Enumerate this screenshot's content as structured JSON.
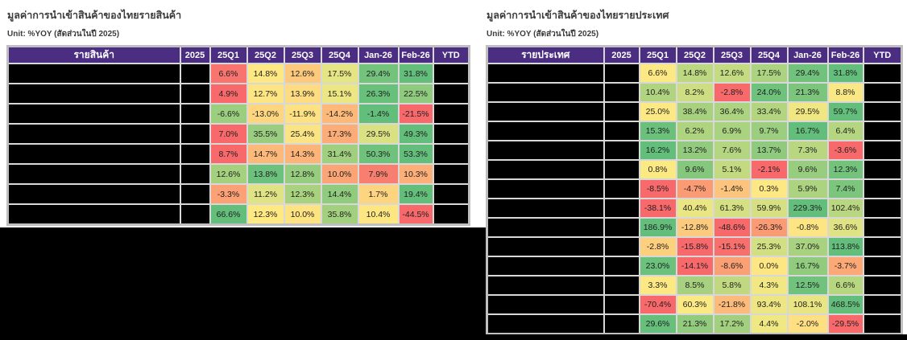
{
  "style": {
    "header_bg": "#4b2d82",
    "header_text": "#ffffff",
    "grid_line": "#d8d8d8",
    "outer_border": "#bfbfbf",
    "title_text": "#3c3c3c",
    "redaction": "#000000",
    "scale_min_red": "#f8696b",
    "scale_mid_yellow": "#ffeb84",
    "scale_max_green": "#63be7b"
  },
  "left_table": {
    "title": "มูลค่าการนำเข้าสินค้าของไทยรายสินค้า",
    "unit": "Unit: %YOY (สัดส่วนในปี 2025)",
    "columns": [
      "รายสินค้า",
      "2025",
      "25Q1",
      "25Q2",
      "25Q3",
      "25Q4",
      "Jan-26",
      "Feb-26",
      "YTD"
    ],
    "redacted_columns": [
      "รายสินค้า",
      "2025",
      "YTD"
    ],
    "rows": [
      {
        "values": [
          "6.6%",
          "14.8%",
          "12.6%",
          "17.5%",
          "29.4%",
          "31.8%"
        ],
        "colors": [
          "#f8746e",
          "#fee883",
          "#fcc97d",
          "#e6e583",
          "#74c37d",
          "#63be7b"
        ]
      },
      {
        "values": [
          "4.9%",
          "12.7%",
          "13.9%",
          "15.1%",
          "26.3%",
          "22.5%"
        ],
        "colors": [
          "#f8696b",
          "#fee583",
          "#fedc81",
          "#ede783",
          "#68c07b",
          "#8fca7e"
        ]
      },
      {
        "values": [
          "-6.6%",
          "-13.0%",
          "-11.9%",
          "-14.2%",
          "-1.4%",
          "-21.5%"
        ],
        "colors": [
          "#9bce7f",
          "#fdd67f",
          "#fee182",
          "#fcb97a",
          "#63be7b",
          "#f8696b"
        ]
      },
      {
        "values": [
          "7.0%",
          "35.5%",
          "25.4%",
          "17.3%",
          "29.5%",
          "49.3%"
        ],
        "colors": [
          "#f8696b",
          "#9acd7f",
          "#fbe483",
          "#fbac77",
          "#d9e182",
          "#63be7b"
        ]
      },
      {
        "values": [
          "8.7%",
          "14.7%",
          "14.3%",
          "31.4%",
          "50.3%",
          "53.3%"
        ],
        "colors": [
          "#f8696b",
          "#fcb97a",
          "#fcb479",
          "#a0cf7f",
          "#6ec27c",
          "#63be7b"
        ]
      },
      {
        "values": [
          "12.6%",
          "13.8%",
          "12.8%",
          "10.0%",
          "7.9%",
          "10.3%"
        ],
        "colors": [
          "#a5d17f",
          "#6cc17c",
          "#97cd7e",
          "#fba476",
          "#f87e70",
          "#fcaf79"
        ]
      },
      {
        "values": [
          "-3.3%",
          "11.2%",
          "12.3%",
          "14.4%",
          "1.7%",
          "19.4%"
        ],
        "colors": [
          "#fba175",
          "#dfe383",
          "#a9d27f",
          "#90cb7e",
          "#fdd47f",
          "#63be7b"
        ]
      },
      {
        "values": [
          "66.6%",
          "12.3%",
          "10.0%",
          "35.8%",
          "10.4%",
          "-44.5%"
        ],
        "colors": [
          "#63be7b",
          "#fee983",
          "#fee383",
          "#a3d07f",
          "#fee783",
          "#f8696b"
        ]
      }
    ]
  },
  "right_table": {
    "title": "มูลค่าการนำเข้าสินค้าของไทยรายประเทศ",
    "unit": "Unit: %YOY (สัดส่วนในปี 2025)",
    "columns": [
      "รายประเทศ",
      "2025",
      "25Q1",
      "25Q2",
      "25Q3",
      "25Q4",
      "Jan-26",
      "Feb-26",
      "YTD"
    ],
    "redacted_columns": [
      "รายประเทศ",
      "2025",
      "YTD"
    ],
    "rows": [
      {
        "values": [
          "6.6%",
          "14.8%",
          "12.6%",
          "17.5%",
          "29.4%",
          "31.8%"
        ],
        "colors": [
          "#fce983",
          "#bcd881",
          "#c4db81",
          "#abd380",
          "#70c27c",
          "#63be7b"
        ]
      },
      {
        "values": [
          "10.4%",
          "8.2%",
          "-2.8%",
          "24.0%",
          "21.3%",
          "8.8%"
        ],
        "colors": [
          "#b0d480",
          "#ccdd82",
          "#f8696b",
          "#6ec27c",
          "#7cc57d",
          "#f9e883"
        ]
      },
      {
        "values": [
          "25.0%",
          "38.4%",
          "36.4%",
          "33.4%",
          "29.5%",
          "59.7%"
        ],
        "colors": [
          "#fde984",
          "#a7d17f",
          "#acd380",
          "#b3d580",
          "#f0e783",
          "#63be7b"
        ]
      },
      {
        "values": [
          "15.3%",
          "6.2%",
          "6.9%",
          "9.7%",
          "16.7%",
          "6.4%"
        ],
        "colors": [
          "#6bc17c",
          "#afd480",
          "#aad37f",
          "#9cce7f",
          "#63be7b",
          "#b5d680"
        ]
      },
      {
        "values": [
          "16.2%",
          "13.2%",
          "7.6%",
          "13.7%",
          "7.3%",
          "-3.6%"
        ],
        "colors": [
          "#63be7b",
          "#92cb7e",
          "#b5d680",
          "#8fca7e",
          "#b8d780",
          "#f8696b"
        ]
      },
      {
        "values": [
          "0.8%",
          "9.6%",
          "5.1%",
          "-2.1%",
          "9.6%",
          "12.3%"
        ],
        "colors": [
          "#fbe983",
          "#84c77d",
          "#c3da81",
          "#f8696b",
          "#98cd7f",
          "#74c37c"
        ]
      },
      {
        "values": [
          "-8.5%",
          "-4.7%",
          "-1.4%",
          "0.3%",
          "5.9%",
          "7.4%"
        ],
        "colors": [
          "#f8696b",
          "#fa9b74",
          "#fcc47c",
          "#fee884",
          "#acd380",
          "#7cc57d"
        ]
      },
      {
        "values": [
          "-38.1%",
          "40.4%",
          "61.3%",
          "59.9%",
          "229.3%",
          "102.4%"
        ],
        "colors": [
          "#f8696b",
          "#e9e683",
          "#d4e082",
          "#d6e082",
          "#63be7b",
          "#b9d780"
        ]
      },
      {
        "values": [
          "186.9%",
          "-12.8%",
          "-48.6%",
          "-26.3%",
          "-0.8%",
          "36.6%"
        ],
        "colors": [
          "#63be7b",
          "#fccb7e",
          "#f8696b",
          "#fb9b74",
          "#fee583",
          "#dfe383"
        ]
      },
      {
        "values": [
          "-2.8%",
          "-15.8%",
          "-15.1%",
          "25.3%",
          "37.0%",
          "113.8%"
        ],
        "colors": [
          "#fdd07e",
          "#f8696b",
          "#f8706d",
          "#d2df82",
          "#a8d27f",
          "#63be7b"
        ]
      },
      {
        "values": [
          "23.0%",
          "-14.1%",
          "-8.6%",
          "0.0%",
          "16.7%",
          "-3.7%"
        ],
        "colors": [
          "#6cc17c",
          "#f8696b",
          "#fb9f75",
          "#fee783",
          "#90cb7e",
          "#fca977"
        ]
      },
      {
        "values": [
          "3.3%",
          "8.5%",
          "5.8%",
          "4.3%",
          "12.5%",
          "6.6%"
        ],
        "colors": [
          "#fce983",
          "#a7d17f",
          "#c0d981",
          "#f2e883",
          "#70c27c",
          "#b7d680"
        ]
      },
      {
        "values": [
          "-70.4%",
          "60.3%",
          "-21.8%",
          "93.4%",
          "108.1%",
          "468.5%"
        ],
        "colors": [
          "#f8696b",
          "#fbe983",
          "#fcba7b",
          "#ede683",
          "#e9e583",
          "#63be7b"
        ]
      },
      {
        "values": [
          "29.6%",
          "21.3%",
          "17.2%",
          "4.4%",
          "-2.0%",
          "-29.5%"
        ],
        "colors": [
          "#66bf7b",
          "#92cb7e",
          "#a3d07f",
          "#efe883",
          "#fedf82",
          "#f8696b"
        ]
      }
    ]
  }
}
